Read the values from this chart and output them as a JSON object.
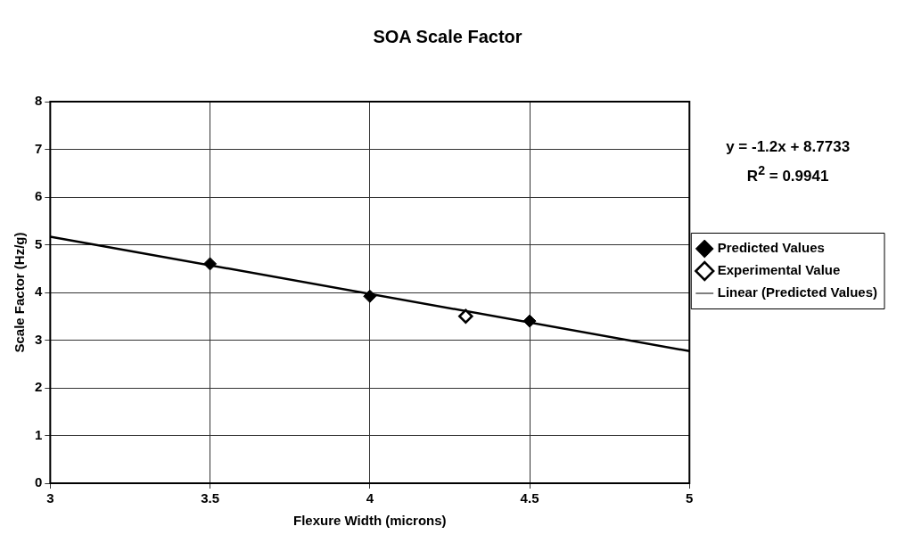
{
  "chart_data": {
    "type": "scatter",
    "title": "SOA Scale Factor",
    "xlabel": "Flexure Width (microns)",
    "ylabel": "Scale Factor (Hz/g)",
    "annotations": [
      "y = -1.2x + 8.7733",
      "R$^{2}$ = 0.9941"
    ],
    "series": [
      {
        "name": "Predicted Values",
        "type": "scatter",
        "color": "#000000",
        "marker": "diamond",
        "x": [
          3.5,
          4,
          4.5
        ],
        "values": [
          4.6,
          3.92,
          3.4
        ]
      },
      {
        "name": "Experimental Value",
        "type": "scatter",
        "color": "#000000",
        "marker": "diamond",
        "x": [
          4.3
        ],
        "values": [
          3.5
        ]
      },
      {
        "name": "Linear (Predicted Values)",
        "type": "line",
        "color": "#000000",
        "marker": "none",
        "line_style": "solid",
        "x": [
          3,
          5
        ],
        "values": [
          5.17,
          2.77
        ]
      }
    ],
    "xlim": [
      3,
      5
    ],
    "xticks": [
      3,
      3.5,
      4,
      4.5,
      5
    ],
    "ylim": [
      0,
      8
    ],
    "yticks": [
      0,
      1,
      2,
      3,
      4,
      5,
      6,
      7,
      8
    ],
    "grid": true,
    "legend": "right"
  }
}
